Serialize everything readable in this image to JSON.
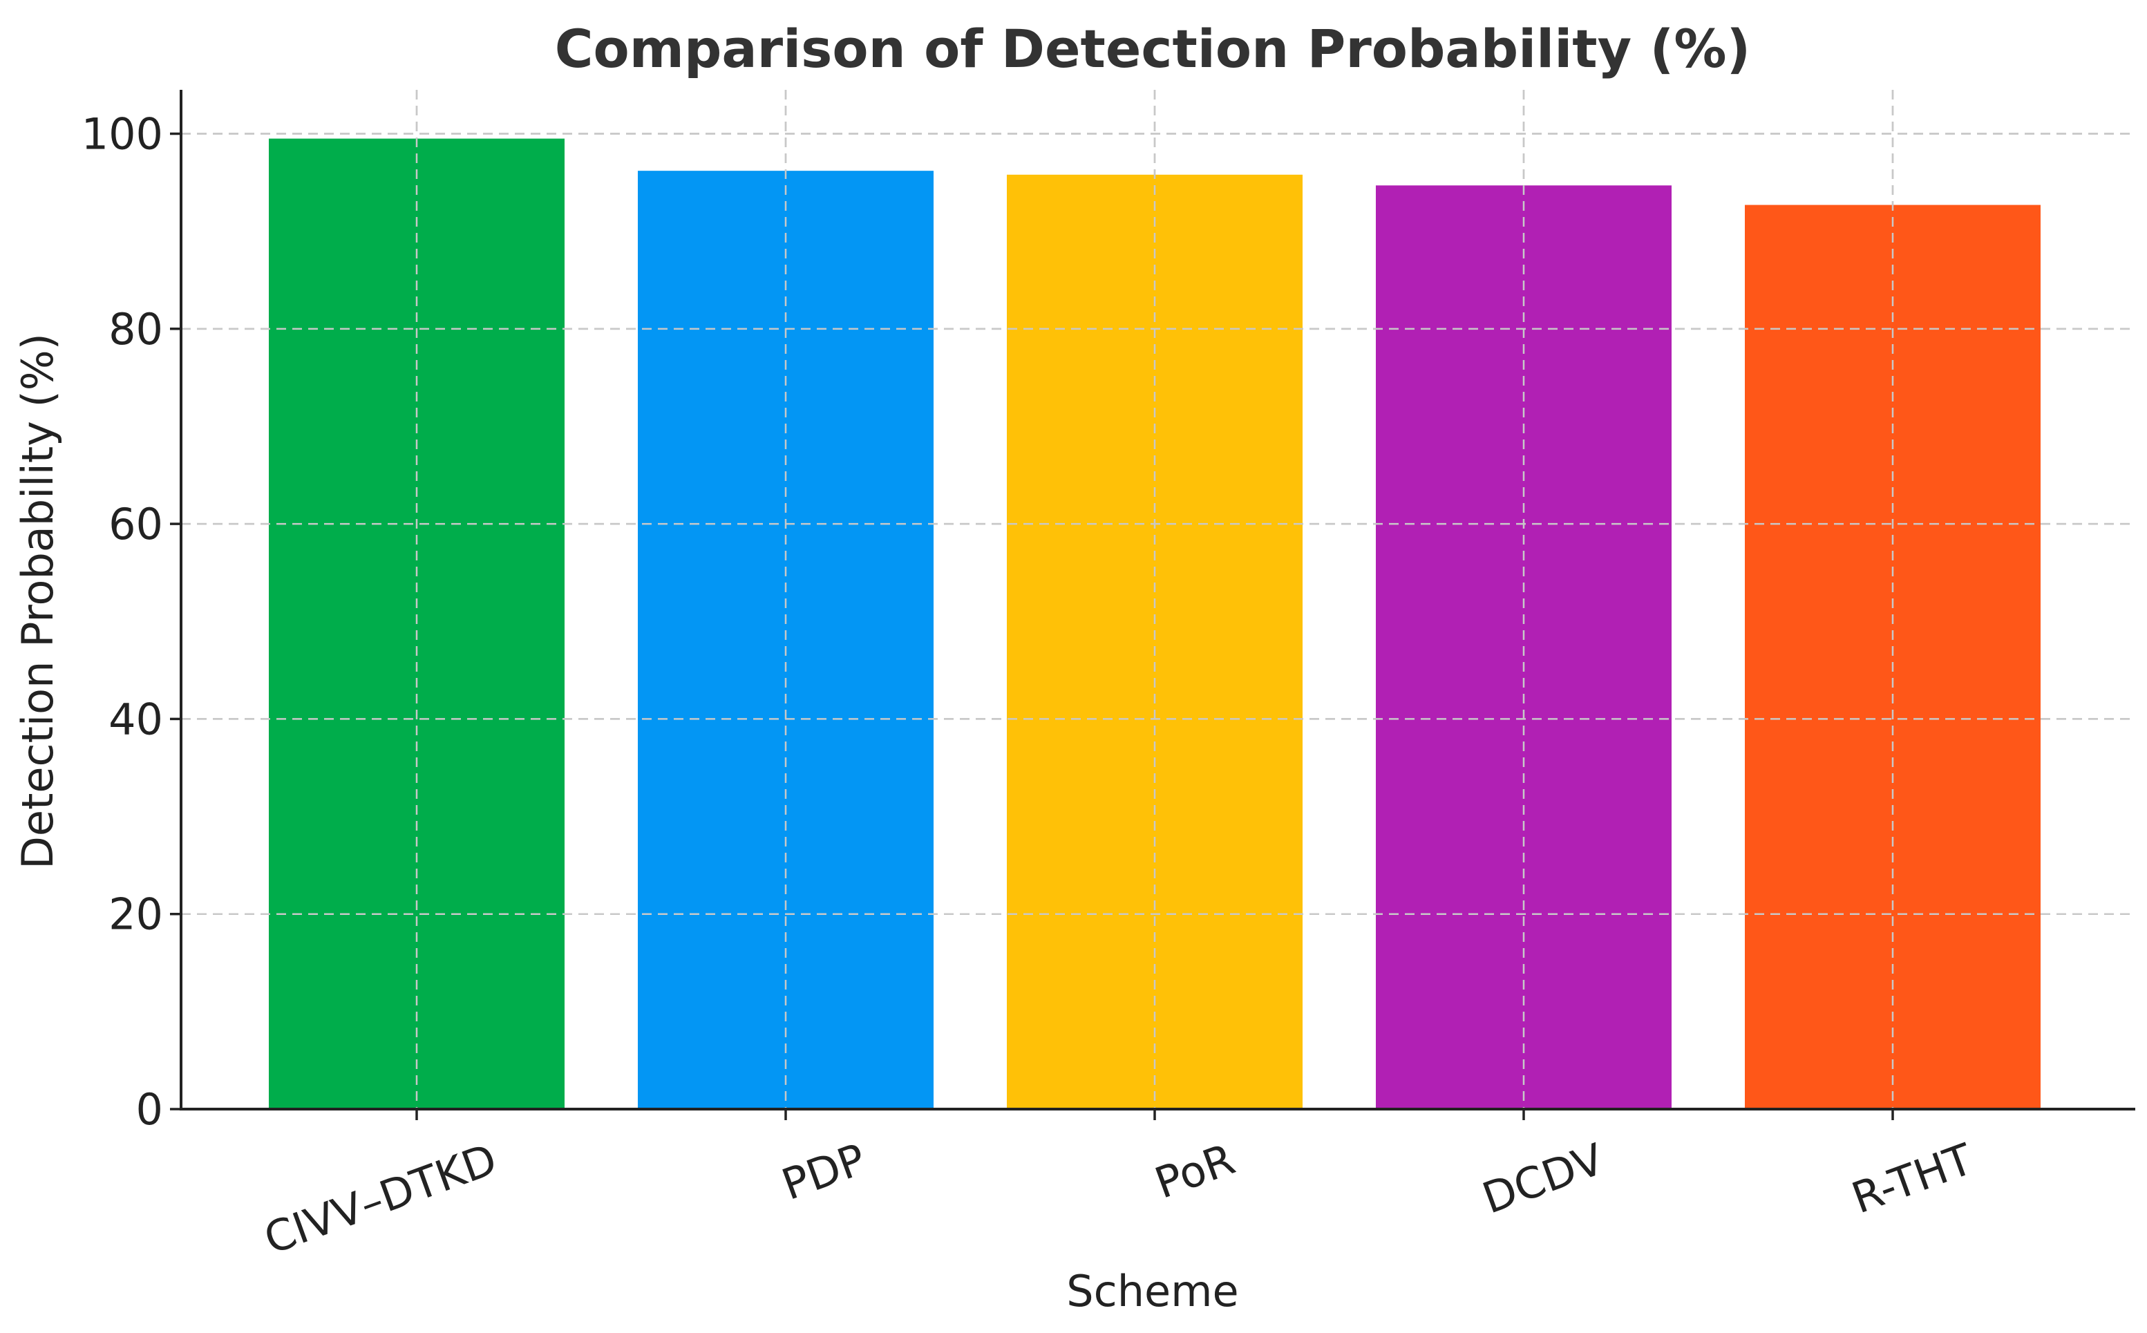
{
  "chart_data": {
    "type": "bar",
    "title": "Comparison of Detection Probability (%)",
    "xlabel": "Scheme",
    "ylabel": "Detection Probability (%)",
    "categories": [
      "CIVV–DTKD",
      "PDP",
      "PoR",
      "DCDV",
      "R-THT"
    ],
    "values": [
      99.5,
      96.2,
      95.8,
      94.7,
      92.7
    ],
    "colors": [
      "#00ad4b",
      "#0396f4",
      "#ffc107",
      "#b120b4",
      "#ff5718"
    ],
    "ylim": [
      0,
      104.5
    ],
    "yticks": [
      0,
      20,
      40,
      60,
      80,
      100
    ],
    "grid": true,
    "x_tick_rotation_deg": -20
  }
}
